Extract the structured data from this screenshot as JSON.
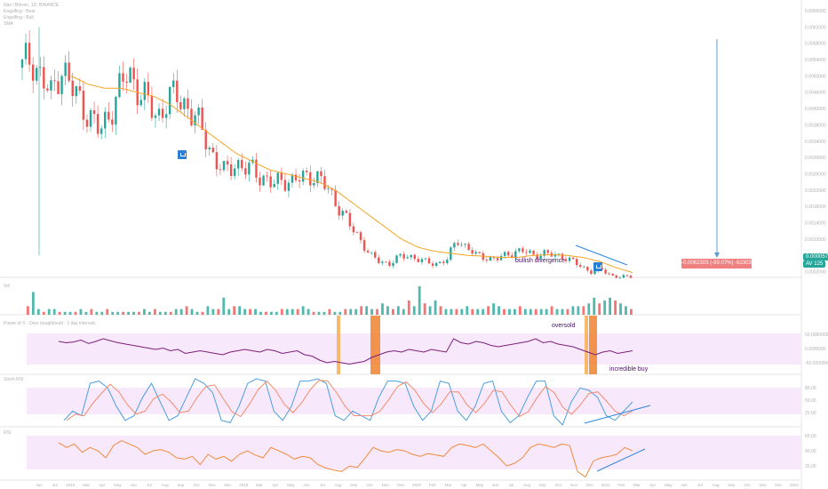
{
  "legends": {
    "main": [
      "Nas / Bitcoin, 1D, BINANCE",
      "Engulfing - Bear",
      "Engulfing - Bull",
      "SMA"
    ],
    "volume": "Vol",
    "power_of_x": "Power of X - Over bought/sold - 1 day intervals",
    "stoch_rsi": "Stoch RSI",
    "rsi": "RSI"
  },
  "annotations": {
    "bullish_divergence": "bullish divergence",
    "oversold": "oversold",
    "incredible_buy": "incredible buy"
  },
  "measure_label": "-0.0062303 (-99.07%) -62303",
  "price_badges": {
    "current": "0.0000574",
    "sma": "AV 125"
  },
  "colors": {
    "up": "#26a69a",
    "down": "#ef5350",
    "sma": "#f5a623",
    "osc": "#7b1f7a",
    "stoch_k": "#4a9ee0",
    "stoch_d": "#f28b6b",
    "rsi": "#f08a3c",
    "band": "#f7e9fb",
    "trend": "#2e86de"
  },
  "chart_data": [
    {
      "type": "candlestick",
      "x_ticks": [
        "Jun",
        "Jul",
        "2018",
        "Mar",
        "Apr",
        "May",
        "Jun",
        "Jul",
        "Aug",
        "Sep",
        "Oct",
        "Nov",
        "Dec",
        "2019",
        "Mar",
        "Apr",
        "May",
        "Jun",
        "Jul",
        "Aug",
        "Sep",
        "Oct",
        "Nov",
        "Dec",
        "2020",
        "Feb",
        "Mar",
        "Apr",
        "May",
        "Jun",
        "Jul",
        "Aug",
        "Sep",
        "Oct",
        "Nov",
        "Dec",
        "2021",
        "Feb",
        "Mar",
        "Apr",
        "May",
        "Jun",
        "Jul",
        "Aug",
        "Sep",
        "Oct",
        "Nov",
        "Dec",
        "2022"
      ],
      "ylim": [
        6e-05,
        0.0066
      ],
      "y_ticks": [
        "0.0066000",
        "0.0062000",
        "0.0058000",
        "0.0054000",
        "0.0050000",
        "0.0046000",
        "0.0042000",
        "0.0038000",
        "0.0034000",
        "0.0030000",
        "0.0026000",
        "0.0022000",
        "0.0018000",
        "0.0014000",
        "0.0010000",
        "0.0006000",
        "0.0002000"
      ],
      "close_path": [
        0.0052,
        0.0055,
        0.0049,
        0.0045,
        0.0053,
        0.0047,
        0.0044,
        0.004,
        0.0036,
        0.0041,
        0.0046,
        0.0051,
        0.0047,
        0.0043,
        0.004,
        0.0044,
        0.0045,
        0.0043,
        0.0039,
        0.0035,
        0.0029,
        0.0026,
        0.0029,
        0.0027,
        0.0027,
        0.0025,
        0.0023,
        0.0025,
        0.0024,
        0.0025,
        0.0026,
        0.0024,
        0.0021,
        0.0017,
        0.0013,
        0.001,
        0.0006,
        0.00045,
        0.0004,
        0.00055,
        0.0006,
        0.0005,
        0.00042,
        0.0004,
        0.0005,
        0.001,
        0.0008,
        0.0006,
        0.00055,
        0.0005,
        0.0006,
        0.0007,
        0.0007,
        0.0006,
        0.00065,
        0.0006,
        0.00058,
        0.00045,
        0.0003,
        0.0002,
        0.00025,
        0.0001,
        6e-05,
        8e-05
      ],
      "sma_path": [
        0.005,
        0.0048,
        0.0047,
        0.0047,
        0.0046,
        0.0045,
        0.0043,
        0.004,
        0.0037,
        0.0034,
        0.0031,
        0.0029,
        0.0027,
        0.0026,
        0.0025,
        0.0024,
        0.0022,
        0.0019,
        0.0016,
        0.0013,
        0.001,
        0.0008,
        0.0007,
        0.00065,
        0.0006,
        0.00058,
        0.00055,
        0.00055,
        0.0006,
        0.00062,
        0.0006,
        0.00055,
        0.00045,
        0.0003,
        0.00018
      ]
    },
    {
      "type": "bar",
      "name": "Vol",
      "values_relative": [
        3,
        8,
        2,
        1,
        2,
        2,
        1,
        1,
        1,
        1,
        2,
        1,
        2,
        1,
        1,
        2,
        1,
        1,
        1,
        1,
        1,
        1,
        2,
        1,
        2,
        1,
        1,
        1,
        2,
        2,
        3,
        2,
        1,
        1,
        3,
        2,
        2,
        6,
        2,
        3,
        3,
        2,
        2,
        2,
        1,
        1,
        1,
        1,
        2,
        2,
        2,
        2,
        3,
        2,
        1,
        1,
        1,
        2,
        1,
        1,
        2,
        2,
        2,
        3,
        3,
        2,
        2,
        4,
        3,
        2,
        3,
        2,
        5,
        3,
        10,
        4,
        3,
        5,
        3,
        2,
        2,
        2,
        2,
        3,
        2,
        2,
        2,
        3,
        4,
        3,
        2,
        2,
        2,
        3,
        2,
        2,
        2,
        2,
        2,
        3,
        2,
        2,
        2,
        3,
        3,
        3,
        4,
        6,
        4,
        5,
        6,
        5,
        4,
        3,
        2
      ]
    },
    {
      "type": "line",
      "name": "Power of X",
      "y_ticks": [
        "50.0000000",
        "0.0000000",
        "-50.0000000"
      ],
      "ylim": [
        -100,
        100
      ],
      "values": [
        20,
        15,
        18,
        25,
        12,
        20,
        30,
        22,
        15,
        10,
        5,
        0,
        -5,
        -10,
        -5,
        -15,
        -10,
        -25,
        -20,
        -15,
        -20,
        -25,
        -30,
        -20,
        -15,
        -10,
        -15,
        -20,
        -10,
        -15,
        -25,
        -20,
        -15,
        -30,
        -35,
        -50,
        -60,
        -55,
        -60,
        -65,
        -60,
        -55,
        -40,
        -30,
        -20,
        -15,
        -20,
        -10,
        -15,
        -20,
        -10,
        -15,
        -20,
        30,
        15,
        10,
        20,
        15,
        5,
        0,
        5,
        10,
        15,
        20,
        30,
        15,
        20,
        10,
        5,
        0,
        -10,
        -20,
        -30,
        -20,
        -15,
        -25,
        -20,
        -15
      ]
    },
    {
      "type": "line",
      "name": "Stoch RSI",
      "y_ticks": [
        "80.00",
        "50.00",
        "20.00"
      ],
      "ylim": [
        0,
        100
      ],
      "k_values": [
        10,
        30,
        20,
        90,
        95,
        80,
        40,
        10,
        20,
        60,
        90,
        50,
        10,
        20,
        60,
        100,
        90,
        70,
        10,
        5,
        40,
        90,
        100,
        95,
        30,
        10,
        40,
        95,
        95,
        100,
        90,
        20,
        10,
        30,
        20,
        10,
        60,
        95,
        95,
        90,
        40,
        10,
        30,
        95,
        90,
        30,
        10,
        40,
        90,
        95,
        30,
        5,
        20,
        60,
        95,
        95,
        20,
        0,
        50,
        80,
        75,
        60,
        20,
        10,
        30,
        50
      ]
    },
    {
      "type": "line",
      "name": "RSI",
      "y_ticks": [
        "60.00",
        "40.00",
        "20.00"
      ],
      "ylim": [
        10,
        80
      ],
      "values": [
        62,
        55,
        60,
        48,
        55,
        50,
        40,
        58,
        65,
        60,
        55,
        45,
        50,
        52,
        48,
        40,
        38,
        42,
        30,
        45,
        38,
        42,
        35,
        45,
        50,
        44,
        40,
        55,
        50,
        45,
        38,
        42,
        40,
        30,
        25,
        22,
        20,
        28,
        26,
        40,
        55,
        50,
        48,
        52,
        50,
        45,
        42,
        46,
        44,
        42,
        55,
        60,
        58,
        55,
        60,
        50,
        40,
        28,
        32,
        40,
        55,
        60,
        58,
        55,
        60,
        58,
        20,
        12,
        35,
        40,
        42,
        45,
        55,
        50
      ]
    }
  ]
}
